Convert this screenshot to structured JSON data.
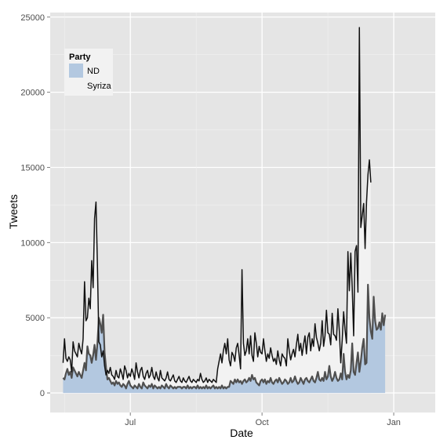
{
  "chart_data": {
    "type": "area",
    "xlabel": "Date",
    "ylabel": "Tweets",
    "x_range": [
      "2012-05-06",
      "2013-01-30"
    ],
    "ylim": [
      -1300,
      25300
    ],
    "y_ticks": [
      0,
      5000,
      10000,
      15000,
      20000,
      25000
    ],
    "y_tick_labels": [
      "0",
      "5000",
      "10000",
      "15000",
      "20000",
      "25000"
    ],
    "x_ticks": [
      "2012-07-01",
      "2012-10-01",
      "2013-01-01"
    ],
    "x_tick_labels": [
      "Jul",
      "Oct",
      "Jan"
    ],
    "grid": true,
    "legend": {
      "title": "Party",
      "position": "top-left",
      "entries": [
        {
          "label": "ND",
          "color": "#b3c8e0"
        },
        {
          "label": "Syriza",
          "color": "#f2f2f2"
        }
      ]
    },
    "start_date": "2012-05-15",
    "series": [
      {
        "name": "ND",
        "color": "#b3c8e0",
        "line_color": "#4f4f4f",
        "values": [
          1000,
          900,
          1300,
          1600,
          1200,
          1400,
          1000,
          1700,
          1500,
          1300,
          1100,
          1400,
          1200,
          1000,
          1500,
          2000,
          1500,
          3100,
          2600,
          2500,
          2000,
          2500,
          3200,
          2200,
          3300,
          5000,
          4600,
          4000,
          5200,
          2700,
          1700,
          900,
          1000,
          800,
          600,
          700,
          500,
          800,
          600,
          700,
          500,
          400,
          600,
          500,
          300,
          600,
          800,
          500,
          400,
          300,
          500,
          400,
          300,
          600,
          400,
          300,
          700,
          500,
          400,
          300,
          500,
          400,
          600,
          300,
          500,
          400,
          300,
          400,
          300,
          500,
          400,
          300,
          600,
          400,
          300,
          500,
          400,
          300,
          400,
          300,
          400,
          400,
          400,
          300,
          400,
          400,
          300,
          500,
          300,
          400,
          300,
          400,
          400,
          300,
          500,
          300,
          400,
          300,
          400,
          300,
          500,
          300,
          400,
          300,
          400,
          500,
          300,
          400,
          300,
          400,
          300,
          500,
          300,
          400,
          300,
          400,
          400,
          800,
          700,
          600,
          900,
          700,
          900,
          700,
          800,
          600,
          800,
          900,
          700,
          800,
          1000,
          800,
          1200,
          900,
          1000,
          700,
          600,
          500,
          800,
          900,
          700,
          900,
          600,
          800,
          700,
          1000,
          700,
          600,
          800,
          900,
          700,
          1000,
          800,
          600,
          700,
          900,
          800,
          600,
          700,
          1000,
          700,
          800,
          1100,
          800,
          600,
          700,
          1000,
          800,
          600,
          900,
          1000,
          800,
          700,
          900,
          1100,
          800,
          700,
          1000,
          1400,
          900,
          800,
          1000,
          800,
          1400,
          900,
          1100,
          1800,
          1100,
          800,
          1000,
          1400,
          1000,
          800,
          900,
          1300,
          900,
          2600,
          1400,
          900,
          1200,
          1000,
          1500,
          3300,
          1400,
          1200,
          2000,
          2700,
          1400,
          2100,
          3000,
          3600,
          1900,
          2000,
          7200,
          5000,
          4100,
          3600,
          6400,
          4800,
          4200,
          4300,
          4700,
          4200,
          5300,
          4500,
          5200
        ]
      },
      {
        "name": "Syriza",
        "color": "#f2f2f2",
        "line_color": "#111111",
        "values": [
          2000,
          3600,
          2300,
          2100,
          2400,
          2200,
          1400,
          3400,
          2800,
          2600,
          2400,
          3300,
          2900,
          2600,
          3600,
          7400,
          4800,
          5000,
          6300,
          5600,
          8800,
          7000,
          11600,
          12700,
          8500,
          3400,
          3200,
          2400,
          2800,
          1800,
          1200,
          1500,
          1300,
          1700,
          1200,
          1100,
          900,
          1500,
          1100,
          1000,
          1600,
          1300,
          900,
          1800,
          1500,
          1000,
          1300,
          1100,
          1600,
          1300,
          900,
          2000,
          1400,
          1000,
          1500,
          1700,
          1100,
          900,
          1300,
          1500,
          1000,
          1200,
          1700,
          1100,
          900,
          1400,
          1000,
          800,
          1500,
          1000,
          900,
          800,
          1000,
          1400,
          900,
          800,
          1000,
          1200,
          800,
          700,
          900,
          1100,
          800,
          700,
          1000,
          800,
          700,
          900,
          1100,
          800,
          700,
          900,
          800,
          700,
          900,
          800,
          1300,
          900,
          700,
          800,
          1000,
          700,
          900,
          800,
          700,
          900,
          800,
          700,
          1600,
          2100,
          2600,
          2000,
          2800,
          3300,
          2600,
          3600,
          2200,
          1800,
          2700,
          2500,
          2100,
          3000,
          3300,
          2500,
          1600,
          8200,
          3300,
          2500,
          2800,
          3600,
          2600,
          3800,
          2500,
          2100,
          4000,
          3300,
          2400,
          3100,
          2700,
          2600,
          3600,
          2800,
          2100,
          2600,
          2300,
          3000,
          2500,
          2100,
          2300,
          1900,
          2800,
          2200,
          1800,
          2600,
          2400,
          2300,
          1800,
          3600,
          2800,
          2200,
          2600,
          2900,
          2400,
          3200,
          3900,
          2800,
          3300,
          2500,
          3200,
          3800,
          2600,
          3700,
          4000,
          2800,
          3600,
          3100,
          4600,
          3700,
          3300,
          2800,
          3300,
          4800,
          3100,
          3800,
          5500,
          4000,
          3900,
          3200,
          5300,
          3900,
          3800,
          3500,
          5600,
          4100,
          2000,
          3500,
          5400,
          4200,
          3300,
          9400,
          6800,
          9300,
          7000,
          3800,
          9400,
          9800,
          6700,
          24300,
          11000,
          11800,
          12600,
          9600,
          12700,
          14500,
          15500,
          14000
        ]
      }
    ]
  }
}
